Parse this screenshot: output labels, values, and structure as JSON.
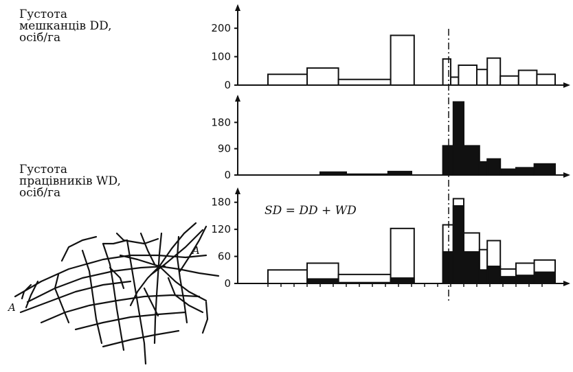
{
  "labels": {
    "dd": [
      "Густота",
      "мешканців DD,",
      "осіб/га"
    ],
    "wd": [
      "Густота",
      "працівників WD,",
      "осіб/га"
    ]
  },
  "formula": "SD = DD + WD",
  "map": {
    "label_left": "A",
    "label_right": "A"
  },
  "chart_data": [
    {
      "type": "bar",
      "name": "DD",
      "yticks": [
        0,
        100,
        200
      ],
      "ylim": [
        0,
        280
      ],
      "fill": "white",
      "series": [
        {
          "x0": 1.0,
          "x1": 2.5,
          "value": 38
        },
        {
          "x0": 2.5,
          "x1": 3.7,
          "value": 60
        },
        {
          "x0": 3.7,
          "x1": 5.7,
          "value": 20
        },
        {
          "x0": 5.7,
          "x1": 6.6,
          "value": 175
        },
        {
          "x0": 7.7,
          "x1": 8.0,
          "value": 92
        },
        {
          "x0": 8.0,
          "x1": 8.3,
          "value": 28
        },
        {
          "x0": 8.3,
          "x1": 9.0,
          "value": 70
        },
        {
          "x0": 9.0,
          "x1": 9.4,
          "value": 55
        },
        {
          "x0": 9.4,
          "x1": 9.9,
          "value": 95
        },
        {
          "x0": 9.9,
          "x1": 10.6,
          "value": 32
        },
        {
          "x0": 10.6,
          "x1": 11.3,
          "value": 52
        },
        {
          "x0": 11.3,
          "x1": 12.0,
          "value": 38
        }
      ]
    },
    {
      "type": "bar",
      "name": "WD",
      "yticks": [
        0,
        90,
        180
      ],
      "ylim": [
        0,
        270
      ],
      "fill": "black",
      "series": [
        {
          "x0": 3.0,
          "x1": 4.0,
          "value": 10
        },
        {
          "x0": 4.0,
          "x1": 5.6,
          "value": 3
        },
        {
          "x0": 5.6,
          "x1": 6.5,
          "value": 12
        },
        {
          "x0": 7.7,
          "x1": 8.1,
          "value": 100
        },
        {
          "x0": 8.1,
          "x1": 8.5,
          "value": 250
        },
        {
          "x0": 8.5,
          "x1": 9.1,
          "value": 100
        },
        {
          "x0": 9.1,
          "x1": 9.4,
          "value": 45
        },
        {
          "x0": 9.4,
          "x1": 9.9,
          "value": 55
        },
        {
          "x0": 9.9,
          "x1": 10.5,
          "value": 20
        },
        {
          "x0": 10.5,
          "x1": 11.2,
          "value": 25
        },
        {
          "x0": 11.2,
          "x1": 12.0,
          "value": 38
        }
      ]
    },
    {
      "type": "bar",
      "name": "SD",
      "yticks": [
        0,
        60,
        120,
        180
      ],
      "ylim": [
        0,
        210
      ],
      "stacked": true,
      "total": [
        {
          "x0": 1.0,
          "x1": 2.5,
          "value": 30
        },
        {
          "x0": 2.5,
          "x1": 3.7,
          "value": 45
        },
        {
          "x0": 3.7,
          "x1": 5.7,
          "value": 20
        },
        {
          "x0": 5.7,
          "x1": 6.6,
          "value": 122
        },
        {
          "x0": 7.7,
          "x1": 8.1,
          "value": 130
        },
        {
          "x0": 8.1,
          "x1": 8.5,
          "value": 188
        },
        {
          "x0": 8.5,
          "x1": 9.1,
          "value": 112
        },
        {
          "x0": 9.1,
          "x1": 9.4,
          "value": 75
        },
        {
          "x0": 9.4,
          "x1": 9.9,
          "value": 95
        },
        {
          "x0": 9.9,
          "x1": 10.5,
          "value": 32
        },
        {
          "x0": 10.5,
          "x1": 11.2,
          "value": 45
        },
        {
          "x0": 11.2,
          "x1": 12.0,
          "value": 52
        }
      ],
      "workers": [
        {
          "x0": 2.5,
          "x1": 3.7,
          "value": 10
        },
        {
          "x0": 3.7,
          "x1": 5.7,
          "value": 2
        },
        {
          "x0": 5.7,
          "x1": 6.6,
          "value": 12
        },
        {
          "x0": 7.7,
          "x1": 8.1,
          "value": 70
        },
        {
          "x0": 8.1,
          "x1": 8.5,
          "value": 172
        },
        {
          "x0": 8.5,
          "x1": 9.1,
          "value": 70
        },
        {
          "x0": 9.1,
          "x1": 9.4,
          "value": 30
        },
        {
          "x0": 9.4,
          "x1": 9.9,
          "value": 38
        },
        {
          "x0": 9.9,
          "x1": 10.5,
          "value": 15
        },
        {
          "x0": 10.5,
          "x1": 11.2,
          "value": 18
        },
        {
          "x0": 11.2,
          "x1": 12.0,
          "value": 25
        }
      ]
    }
  ]
}
